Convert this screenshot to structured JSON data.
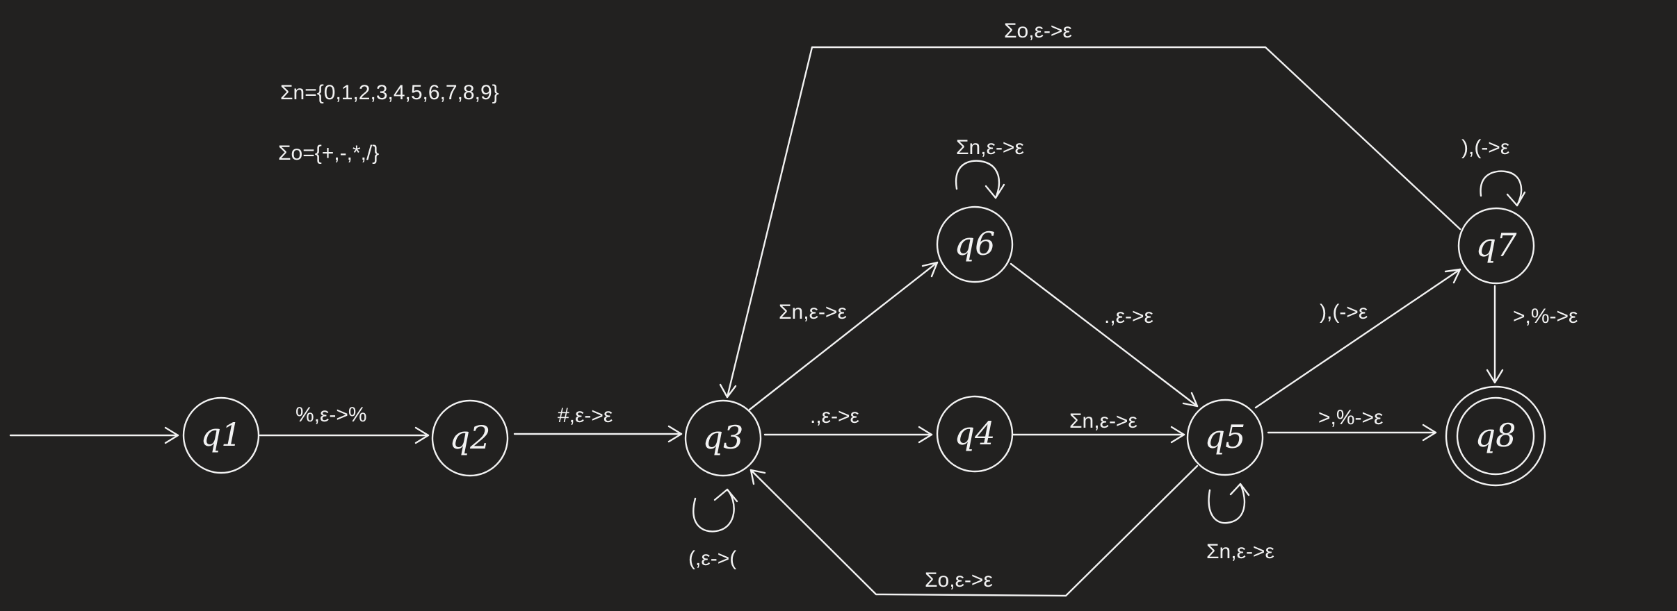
{
  "definitions": {
    "sigma_n": "Σn={0,1,2,3,4,5,6,7,8,9}",
    "sigma_o": "Σo={+,-,*,/}"
  },
  "states": {
    "q1": "q1",
    "q2": "q2",
    "q3": "q3",
    "q4": "q4",
    "q5": "q5",
    "q6": "q6",
    "q7": "q7",
    "q8": "q8"
  },
  "transitions": {
    "q1_q2": "%,ε->%",
    "q2_q3": "#,ε->ε",
    "q3_q4": ".,ε->ε",
    "q3_q6": "Σn,ε->ε",
    "q3_self": "(,ε->(",
    "q4_q5": "Σn,ε->ε",
    "q6_self": "Σn,ε->ε",
    "q6_q5": ".,ε->ε",
    "q5_self": "Σn,ε->ε",
    "q5_q7": "),(->ε",
    "q5_q8": ">,%->ε",
    "q5_q3": "Σo,ε->ε",
    "q7_self": "),(->ε",
    "q7_q8": ">,%->ε",
    "q7_q3": "Σo,ε->ε"
  },
  "colors": {
    "background": "#222120",
    "stroke": "#f2f2f2"
  }
}
